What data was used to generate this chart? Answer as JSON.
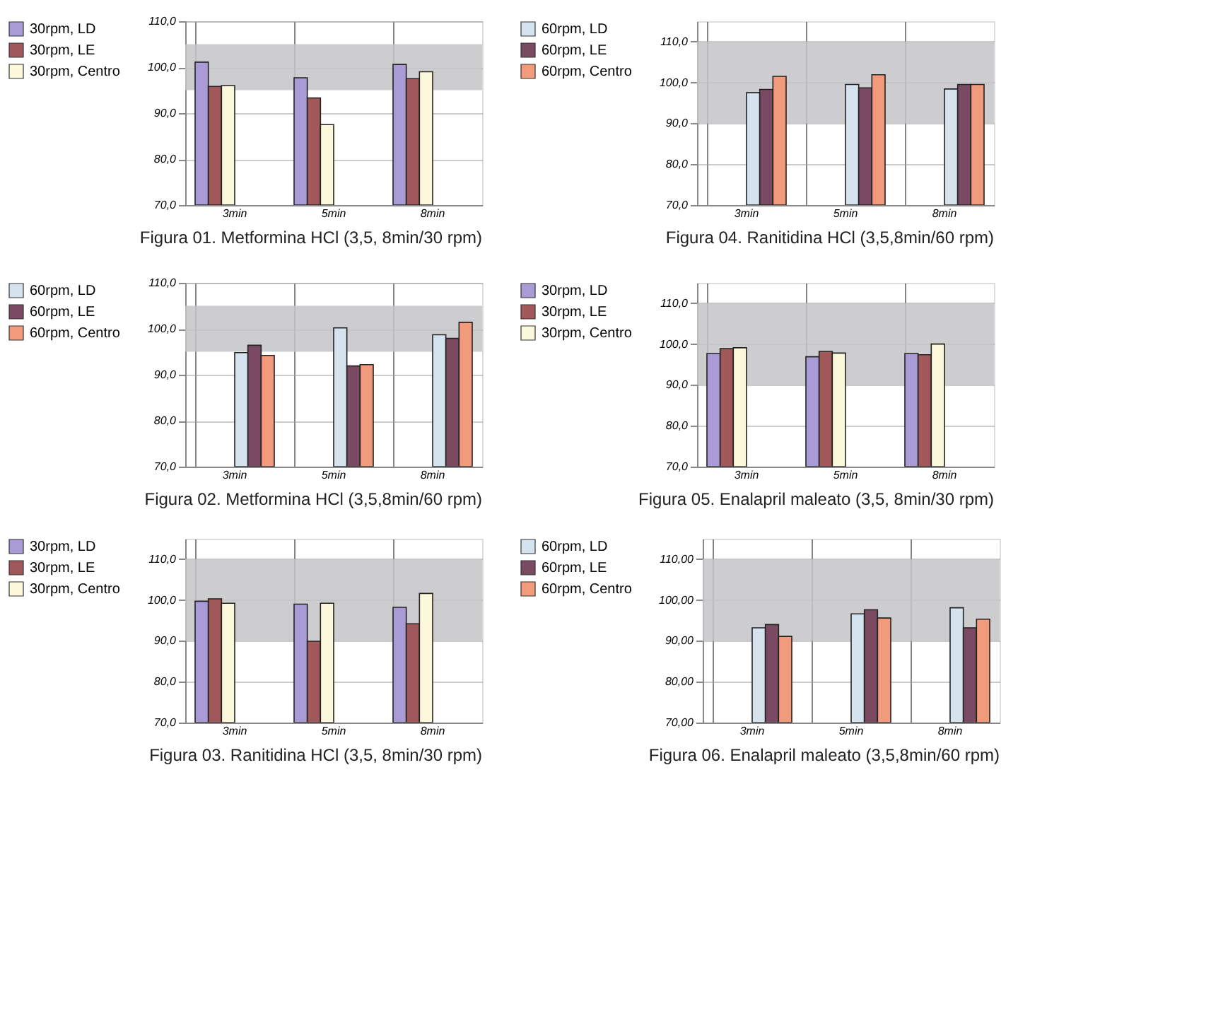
{
  "chart_data": [
    {
      "type": "bar",
      "title": "Figura 01. Metformina HCl (3,5, 8min/30 rpm)",
      "categories": [
        "3min",
        "5min",
        "8min"
      ],
      "legend": "left",
      "grid": true,
      "ylim": [
        70,
        110
      ],
      "yticks": [
        {
          "value": 70,
          "label": "70,0"
        },
        {
          "value": 80,
          "label": "80,0"
        },
        {
          "value": 90,
          "label": "90,0"
        },
        {
          "value": 100,
          "label": "100,0"
        },
        {
          "value": 110,
          "label": "110,0"
        }
      ],
      "bands": [
        {
          "axis": "y",
          "from": 95,
          "to": 105,
          "color": "#c4c4c8"
        }
      ],
      "series": [
        {
          "name": "30rpm, LD",
          "color": "#a99bd6",
          "values": [
            101.1,
            97.7,
            100.6
          ]
        },
        {
          "name": "30rpm, LE",
          "color": "#a0585a",
          "values": [
            95.8,
            93.3,
            97.5
          ]
        },
        {
          "name": "30rpm, Centro",
          "color": "#fbf8dc",
          "values": [
            96.0,
            87.5,
            99.0
          ]
        }
      ]
    },
    {
      "type": "bar",
      "title": "Figura 04. Ranitidina HCl (3,5,8min/60 rpm)",
      "categories": [
        "3min",
        "5min",
        "8min"
      ],
      "legend": "left",
      "grid": true,
      "ylim": [
        70,
        115
      ],
      "yticks": [
        {
          "value": 70,
          "label": "70,0"
        },
        {
          "value": 80,
          "label": "80,0"
        },
        {
          "value": 90,
          "label": "90,0"
        },
        {
          "value": 100,
          "label": "100,0"
        },
        {
          "value": 110,
          "label": "110,0"
        }
      ],
      "bands": [
        {
          "axis": "y",
          "from": 90,
          "to": 110,
          "color": "#c4c4c8"
        }
      ],
      "series": [
        {
          "name": "60rpm, LD",
          "color": "#d5e3ee",
          "values": [
            97.5,
            99.5,
            98.4
          ]
        },
        {
          "name": "60rpm, LE",
          "color": "#7a4a62",
          "values": [
            98.3,
            98.7,
            99.5
          ]
        },
        {
          "name": "60rpm, Centro",
          "color": "#f29a7c",
          "values": [
            101.5,
            101.9,
            99.5
          ]
        }
      ]
    },
    {
      "type": "bar",
      "title": "Figura 02. Metformina HCl (3,5,8min/60 rpm)",
      "categories": [
        "3min",
        "5min",
        "8min"
      ],
      "legend": "left",
      "grid": true,
      "ylim": [
        70,
        110
      ],
      "yticks": [
        {
          "value": 70,
          "label": "70,0"
        },
        {
          "value": 80,
          "label": "80,0"
        },
        {
          "value": 90,
          "label": "90,0"
        },
        {
          "value": 100,
          "label": "100,0"
        },
        {
          "value": 110,
          "label": "110,0"
        }
      ],
      "bands": [
        {
          "axis": "y",
          "from": 95,
          "to": 105,
          "color": "#c4c4c8"
        }
      ],
      "series": [
        {
          "name": "60rpm, LD",
          "color": "#d5e3ee",
          "values": [
            94.8,
            100.2,
            98.7
          ]
        },
        {
          "name": "60rpm, LE",
          "color": "#7a4a62",
          "values": [
            96.4,
            91.9,
            97.9
          ]
        },
        {
          "name": "60rpm, Centro",
          "color": "#f29a7c",
          "values": [
            94.2,
            92.2,
            101.4
          ]
        }
      ]
    },
    {
      "type": "bar",
      "title": "Figura 05. Enalapril maleato (3,5, 8min/30 rpm)",
      "categories": [
        "3min",
        "5min",
        "8min"
      ],
      "legend": "left",
      "grid": true,
      "ylim": [
        70,
        115
      ],
      "yticks": [
        {
          "value": 70,
          "label": "70,0"
        },
        {
          "value": 80,
          "label": "80,0"
        },
        {
          "value": 90,
          "label": "90,0"
        },
        {
          "value": 100,
          "label": "100,0"
        },
        {
          "value": 110,
          "label": "110,0"
        }
      ],
      "bands": [
        {
          "axis": "y",
          "from": 90,
          "to": 110,
          "color": "#c4c4c8"
        }
      ],
      "series": [
        {
          "name": "30rpm, LD",
          "color": "#a99bd6",
          "values": [
            97.7,
            96.9,
            97.7
          ]
        },
        {
          "name": "30rpm, LE",
          "color": "#a0585a",
          "values": [
            98.9,
            98.2,
            97.4
          ]
        },
        {
          "name": "30rpm, Centro",
          "color": "#fbf8dc",
          "values": [
            99.1,
            97.8,
            100.0
          ]
        }
      ]
    },
    {
      "type": "bar",
      "title": "Figura 03. Ranitidina HCl (3,5, 8min/30 rpm)",
      "categories": [
        "3min",
        "5min",
        "8min"
      ],
      "legend": "left",
      "grid": true,
      "ylim": [
        70,
        115
      ],
      "yticks": [
        {
          "value": 70,
          "label": "70,0"
        },
        {
          "value": 80,
          "label": "80,0"
        },
        {
          "value": 90,
          "label": "90,0"
        },
        {
          "value": 100,
          "label": "100,0"
        },
        {
          "value": 110,
          "label": "110,0"
        }
      ],
      "bands": [
        {
          "axis": "y",
          "from": 90,
          "to": 110,
          "color": "#c4c4c8"
        }
      ],
      "series": [
        {
          "name": "30rpm, LD",
          "color": "#a99bd6",
          "values": [
            99.7,
            99.0,
            98.2
          ]
        },
        {
          "name": "30rpm, LE",
          "color": "#a0585a",
          "values": [
            100.3,
            89.9,
            94.2
          ]
        },
        {
          "name": "30rpm, Centro",
          "color": "#fbf8dc",
          "values": [
            99.2,
            99.2,
            101.6
          ]
        }
      ]
    },
    {
      "type": "bar",
      "title": "Figura 06. Enalapril maleato (3,5,8min/60 rpm)",
      "categories": [
        "3min",
        "5min",
        "8min"
      ],
      "legend": "left",
      "grid": true,
      "ylim": [
        70,
        115
      ],
      "yticks": [
        {
          "value": 70,
          "label": "70,00"
        },
        {
          "value": 80,
          "label": "80,00"
        },
        {
          "value": 90,
          "label": "90,00"
        },
        {
          "value": 100,
          "label": "100,00"
        },
        {
          "value": 110,
          "label": "110,00"
        }
      ],
      "bands": [
        {
          "axis": "y",
          "from": 90,
          "to": 110,
          "color": "#c4c4c8"
        }
      ],
      "series": [
        {
          "name": "60rpm, LD",
          "color": "#d5e3ee",
          "values": [
            93.2,
            96.6,
            98.1
          ]
        },
        {
          "name": "60rpm, LE",
          "color": "#7a4a62",
          "values": [
            94.0,
            97.6,
            93.2
          ]
        },
        {
          "name": "60rpm, Centro",
          "color": "#f29a7c",
          "values": [
            91.1,
            95.6,
            95.3
          ]
        }
      ]
    }
  ]
}
